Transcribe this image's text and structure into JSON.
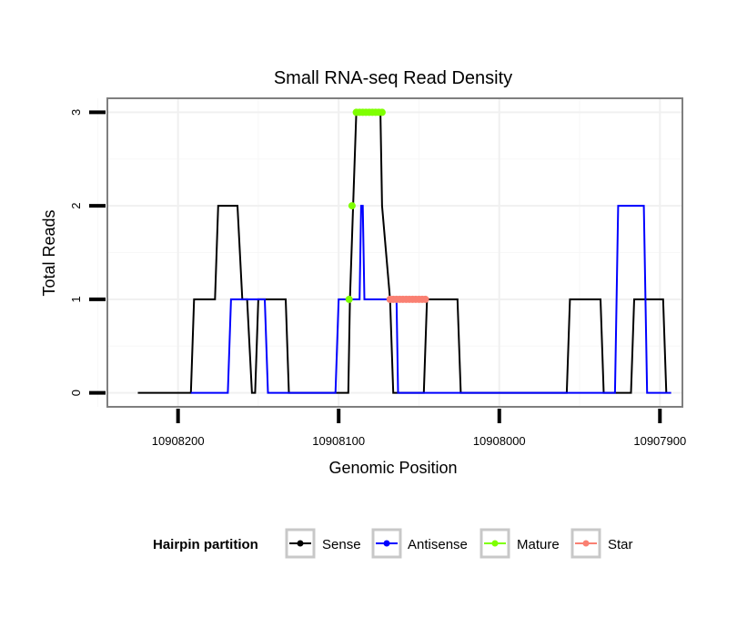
{
  "chart_data": {
    "type": "line",
    "title": "Small RNA-seq Read Density",
    "xlabel": "Genomic Position",
    "ylabel": "Total Reads",
    "xlim": [
      10908244,
      10907886
    ],
    "ylim": [
      -0.15,
      3.15
    ],
    "x_reversed": true,
    "grid": true,
    "x_ticks": [
      10908200,
      10908100,
      10908000,
      10907900
    ],
    "x_tick_labels": [
      "10908200",
      "10908100",
      "10908000",
      "10907900"
    ],
    "y_ticks": [
      0,
      1,
      2,
      3
    ],
    "y_tick_labels": [
      "0",
      "1",
      "2",
      "3"
    ],
    "legend": {
      "title": "Hairpin partition",
      "position": "bottom",
      "entries": [
        {
          "name": "Sense",
          "color": "#000000"
        },
        {
          "name": "Antisense",
          "color": "#0000ff"
        },
        {
          "name": "Mature",
          "color": "#7fff00"
        },
        {
          "name": "Star",
          "color": "#fa8072"
        }
      ]
    },
    "series": [
      {
        "name": "Sense",
        "color": "#000000",
        "kind": "line",
        "x": [
          10908225,
          10908192,
          10908190,
          10908177,
          10908175,
          10908163,
          10908160,
          10908157,
          10908154,
          10908152,
          10908150,
          10908149,
          10908133,
          10908131,
          10908094,
          10908093,
          10908091,
          10908089,
          10908074,
          10908073,
          10908068,
          10908066,
          10908047,
          10908045,
          10908026,
          10908024,
          10907958,
          10907956,
          10907937,
          10907935,
          10907918,
          10907916,
          10907898,
          10907896
        ],
        "y": [
          0,
          0,
          1,
          1,
          2,
          2,
          1,
          1,
          0,
          0,
          1,
          1,
          1,
          0,
          0,
          1,
          2,
          3,
          3,
          2,
          1,
          0,
          0,
          1,
          1,
          0,
          0,
          1,
          1,
          0,
          0,
          1,
          1,
          0
        ]
      },
      {
        "name": "Antisense",
        "color": "#0000ff",
        "kind": "line",
        "x": [
          10908192,
          10908169,
          10908167,
          10908146,
          10908144,
          10908132,
          10908131,
          10908102,
          10908100,
          10908087,
          10908086,
          10908085,
          10908084,
          10908082,
          10908081,
          10908079,
          10908064,
          10908063,
          10907937,
          10907935,
          10907928,
          10907926,
          10907910,
          10907908,
          10907893
        ],
        "y": [
          0,
          0,
          1,
          1,
          0,
          0,
          0,
          0,
          1,
          1,
          2,
          2,
          1,
          1,
          1,
          1,
          1,
          0,
          0,
          0,
          0,
          2,
          2,
          0,
          0
        ]
      },
      {
        "name": "Mature",
        "color": "#7fff00",
        "kind": "points",
        "x": [
          10908093.5,
          10908091.7,
          10908089,
          10908087,
          10908085,
          10908083,
          10908081,
          10908079,
          10908077,
          10908075,
          10908073
        ],
        "y": [
          1,
          2,
          3,
          3,
          3,
          3,
          3,
          3,
          3,
          3,
          3
        ]
      },
      {
        "name": "Star",
        "color": "#fa8072",
        "kind": "points",
        "x": [
          10908068,
          10908066,
          10908064,
          10908062,
          10908060,
          10908058,
          10908056,
          10908054,
          10908052,
          10908050,
          10908048,
          10908046
        ],
        "y": [
          1,
          1,
          1,
          1,
          1,
          1,
          1,
          1,
          1,
          1,
          1,
          1
        ]
      }
    ]
  }
}
